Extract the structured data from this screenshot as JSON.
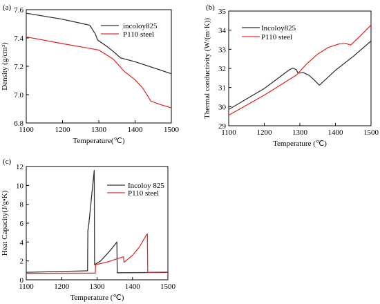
{
  "figure": {
    "panels": [
      "(a)",
      "(b)",
      "(c)"
    ]
  },
  "chart_data": [
    {
      "type": "line",
      "label": "(a)",
      "xlabel": "Temperature(℃)",
      "ylabel": "Density (g/cm³)",
      "xlim": [
        1100,
        1500
      ],
      "ylim": [
        6.8,
        7.6
      ],
      "xticks": [
        "1100",
        "1200",
        "1300",
        "1400",
        "1500"
      ],
      "yticks": [
        "6.8",
        "7.0",
        "7.2",
        "7.4",
        "7.6"
      ],
      "legend_position": "top-right",
      "grid": false,
      "series": [
        {
          "name": "incoloy825",
          "color": "#333333",
          "points": [
            [
              1100,
              7.575
            ],
            [
              1200,
              7.532
            ],
            [
              1275,
              7.49
            ],
            [
              1290,
              7.43
            ],
            [
              1297,
              7.385
            ],
            [
              1320,
              7.345
            ],
            [
              1340,
              7.305
            ],
            [
              1360,
              7.26
            ],
            [
              1400,
              7.232
            ],
            [
              1450,
              7.19
            ],
            [
              1500,
              7.148
            ]
          ]
        },
        {
          "name": "P110 steel",
          "color": "#e03030",
          "points": [
            [
              1100,
              7.408
            ],
            [
              1200,
              7.36
            ],
            [
              1300,
              7.315
            ],
            [
              1340,
              7.25
            ],
            [
              1370,
              7.165
            ],
            [
              1400,
              7.105
            ],
            [
              1420,
              7.05
            ],
            [
              1435,
              6.99
            ],
            [
              1443,
              6.955
            ],
            [
              1470,
              6.93
            ],
            [
              1500,
              6.907
            ]
          ]
        }
      ]
    },
    {
      "type": "line",
      "label": "(b)",
      "xlabel": "Temperature (℃)",
      "ylabel": "Thermal conductivity (W/(m·K))",
      "xlim": [
        1100,
        1500
      ],
      "ylim": [
        29,
        35
      ],
      "xticks": [
        "1100",
        "1200",
        "1300",
        "1400",
        "1500"
      ],
      "yticks": [
        "29",
        "30",
        "31",
        "32",
        "33",
        "34",
        "35"
      ],
      "legend_position": "top-left",
      "grid": false,
      "series": [
        {
          "name": "Incoloy825",
          "color": "#333333",
          "points": [
            [
              1100,
              29.85
            ],
            [
              1200,
              30.95
            ],
            [
              1270,
              31.92
            ],
            [
              1280,
              32.02
            ],
            [
              1290,
              31.93
            ],
            [
              1295,
              31.75
            ],
            [
              1310,
              31.78
            ],
            [
              1325,
              31.65
            ],
            [
              1340,
              31.4
            ],
            [
              1355,
              31.12
            ],
            [
              1400,
              31.9
            ],
            [
              1450,
              32.63
            ],
            [
              1500,
              33.43
            ]
          ]
        },
        {
          "name": "P110 steel",
          "color": "#e03030",
          "points": [
            [
              1100,
              29.55
            ],
            [
              1200,
              30.6
            ],
            [
              1290,
              31.65
            ],
            [
              1320,
              32.25
            ],
            [
              1350,
              32.75
            ],
            [
              1380,
              33.1
            ],
            [
              1410,
              33.28
            ],
            [
              1430,
              33.3
            ],
            [
              1443,
              33.22
            ],
            [
              1470,
              33.7
            ],
            [
              1500,
              34.27
            ]
          ]
        }
      ]
    },
    {
      "type": "line",
      "label": "(c)",
      "xlabel": "Temperature (℃)",
      "ylabel": "Heat Capacity(J/g•K)",
      "xlim": [
        1100,
        1500
      ],
      "ylim": [
        0,
        12
      ],
      "xticks": [
        "1100",
        "1200",
        "1300",
        "1400",
        "1500"
      ],
      "yticks": [
        "0",
        "2",
        "4",
        "6",
        "8",
        "10",
        "12"
      ],
      "legend_position": "top-right",
      "grid": false,
      "series": [
        {
          "name": "Incoloy 825",
          "color": "#333333",
          "points": [
            [
              1100,
              0.8
            ],
            [
              1270,
              0.95
            ],
            [
              1273,
              0.95
            ],
            [
              1274,
              5.2
            ],
            [
              1277,
              6.0
            ],
            [
              1285,
              9.0
            ],
            [
              1292,
              11.6
            ],
            [
              1293,
              1.6
            ],
            [
              1310,
              2.0
            ],
            [
              1330,
              2.8
            ],
            [
              1350,
              3.7
            ],
            [
              1356,
              4.0
            ],
            [
              1357,
              0.75
            ],
            [
              1500,
              0.78
            ]
          ]
        },
        {
          "name": "P110 steel",
          "color": "#e03030",
          "points": [
            [
              1100,
              0.68
            ],
            [
              1295,
              0.7
            ],
            [
              1296,
              1.6
            ],
            [
              1330,
              1.9
            ],
            [
              1370,
              2.4
            ],
            [
              1375,
              2.45
            ],
            [
              1376,
              1.85
            ],
            [
              1400,
              2.6
            ],
            [
              1420,
              3.5
            ],
            [
              1440,
              4.8
            ],
            [
              1442,
              4.85
            ],
            [
              1443,
              0.8
            ],
            [
              1500,
              0.82
            ]
          ]
        }
      ]
    }
  ]
}
